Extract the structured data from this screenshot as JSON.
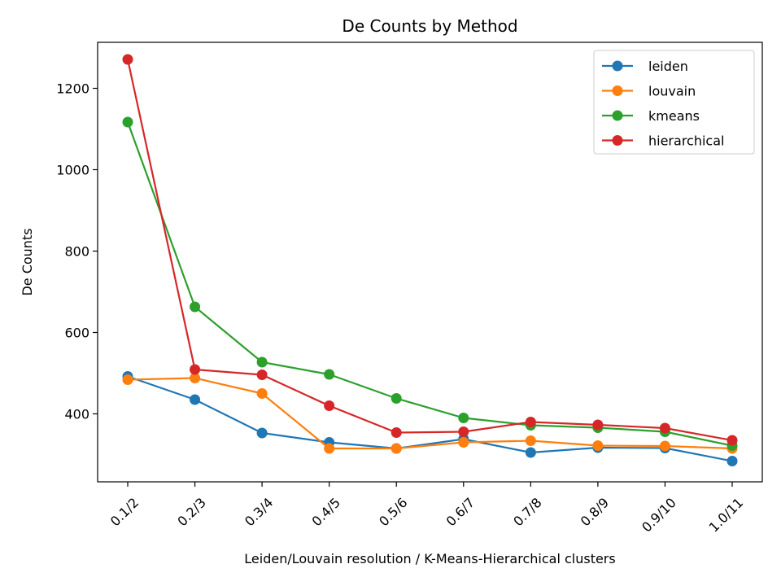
{
  "chart_data": {
    "type": "line",
    "title": "De Counts by Method",
    "xlabel": "Leiden/Louvain resolution  /  K-Means-Hierarchical clusters",
    "ylabel": "De Counts",
    "categories": [
      "0.1/2",
      "0.2/3",
      "0.3/4",
      "0.4/5",
      "0.5/6",
      "0.6/7",
      "0.7/8",
      "0.8/9",
      "0.9/10",
      "1.0/11"
    ],
    "yticks": [
      400,
      600,
      800,
      1000,
      1200
    ],
    "ylim": [
      233,
      1313
    ],
    "grid": false,
    "legend_position": "top-right",
    "series": [
      {
        "name": "leiden",
        "color": "#1f77b4",
        "values": [
          492,
          435,
          353,
          330,
          315,
          338,
          305,
          317,
          316,
          284
        ]
      },
      {
        "name": "louvain",
        "color": "#ff7f0e",
        "values": [
          484,
          488,
          450,
          315,
          315,
          330,
          334,
          322,
          321,
          315
        ]
      },
      {
        "name": "kmeans",
        "color": "#2ca02c",
        "values": [
          1117,
          663,
          527,
          497,
          438,
          390,
          372,
          366,
          356,
          322
        ]
      },
      {
        "name": "hierarchical",
        "color": "#d62728",
        "values": [
          1271,
          509,
          496,
          420,
          354,
          356,
          380,
          373,
          365,
          335
        ]
      }
    ]
  }
}
